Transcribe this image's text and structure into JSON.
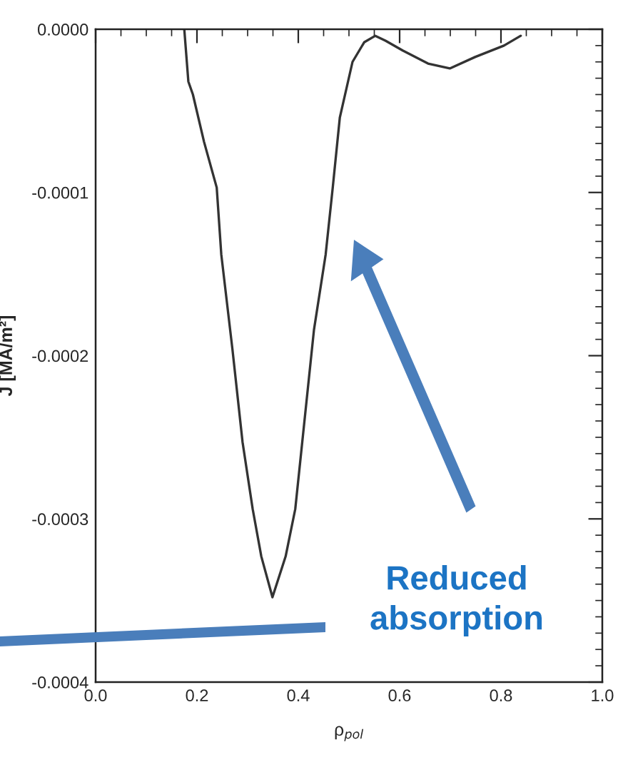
{
  "chart_data": {
    "type": "line",
    "xlabel": "ρ$_{pol}$",
    "ylabel": "J [MA/m²]",
    "x": [
      0.175,
      0.183,
      0.192,
      0.214,
      0.239,
      0.248,
      0.27,
      0.29,
      0.31,
      0.327,
      0.349,
      0.375,
      0.394,
      0.431,
      0.454,
      0.468,
      0.482,
      0.507,
      0.53,
      0.552,
      0.572,
      0.606,
      0.656,
      0.699,
      0.749,
      0.806,
      0.839
    ],
    "series": [
      {
        "color": "#333333",
        "values": [
          0.0,
          -3.2e-05,
          -4e-05,
          -6.9e-05,
          -9.7e-05,
          -0.000138,
          -0.000196,
          -0.000253,
          -0.000294,
          -0.000323,
          -0.000348,
          -0.000323,
          -0.000294,
          -0.000184,
          -0.000138,
          -9.7e-05,
          -5.4e-05,
          -2e-05,
          -8e-06,
          -4e-06,
          -7e-06,
          -1.3e-05,
          -2.1e-05,
          -2.4e-05,
          -1.7e-05,
          -1e-05,
          -4e-06
        ]
      }
    ],
    "xlim": [
      0.0,
      1.0
    ],
    "ylim": [
      -0.0004,
      0.0
    ],
    "xticks": [
      {
        "value": 0.0,
        "label": "0.0"
      },
      0.2,
      0.4,
      0.6,
      0.8,
      {
        "value": 1.0,
        "label": "1.0"
      }
    ],
    "yticks": [
      {
        "value": 0.0,
        "label": "0.0000"
      },
      {
        "value": -0.0001,
        "label": "-0.0001"
      },
      {
        "value": -0.0002,
        "label": "-0.0002"
      },
      {
        "value": -0.0003,
        "label": "-0.0003"
      },
      {
        "value": -0.0004,
        "label": "-0.0004"
      }
    ],
    "annotations": [
      "Reduced absorption"
    ],
    "grid": false,
    "legend": false,
    "marker": "none",
    "line_style": "solid"
  }
}
